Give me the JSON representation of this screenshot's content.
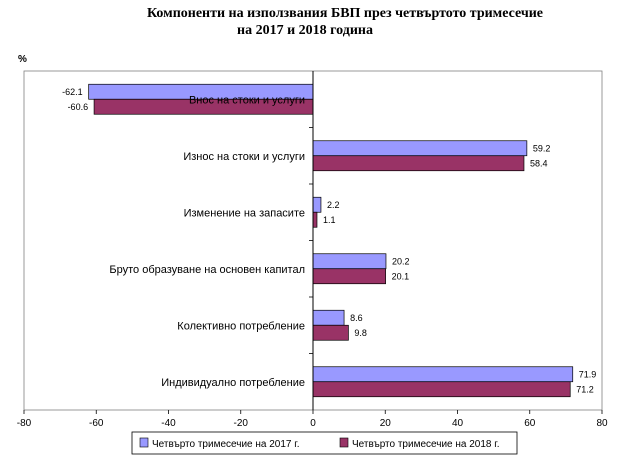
{
  "title_line1": "Компоненти на използвания БВП през четвъртото тримесечие",
  "title_line2": "на 2017 и 2018 година",
  "y_unit": "%",
  "chart_data": {
    "type": "bar",
    "orientation": "horizontal",
    "categories": [
      "Внос на стоки и услуги",
      "Износ на стоки и услуги",
      "Изменение на запасите",
      "Бруто образуване на основен капитал",
      "Колективно  потребление",
      "Индивидуално  потребление"
    ],
    "series": [
      {
        "name": "Четвърто тримесечие  на 2017 г.",
        "values": [
          -62.1,
          59.2,
          2.2,
          20.2,
          8.6,
          71.9
        ],
        "color": "#9999ff"
      },
      {
        "name": "Четвърто тримесечие  на 2018 г.",
        "values": [
          -60.6,
          58.4,
          1.1,
          20.1,
          9.8,
          71.2
        ],
        "color": "#993366"
      }
    ],
    "value_labels": [
      [
        "-62.1",
        "59.2",
        "2.2",
        "20.2",
        "8.6",
        "71.9"
      ],
      [
        "-60.6",
        "58.4",
        "1.1",
        "20.1",
        "9.8",
        "71.2"
      ]
    ],
    "xlim": [
      -80,
      80
    ],
    "xticks": [
      -80,
      -60,
      -40,
      -20,
      0,
      20,
      40,
      60,
      80
    ],
    "xtick_labels": [
      "-80",
      "-60",
      "-40",
      "-20",
      "0",
      "20",
      "40",
      "60",
      "80"
    ],
    "grid": false,
    "legend_position": "bottom"
  }
}
